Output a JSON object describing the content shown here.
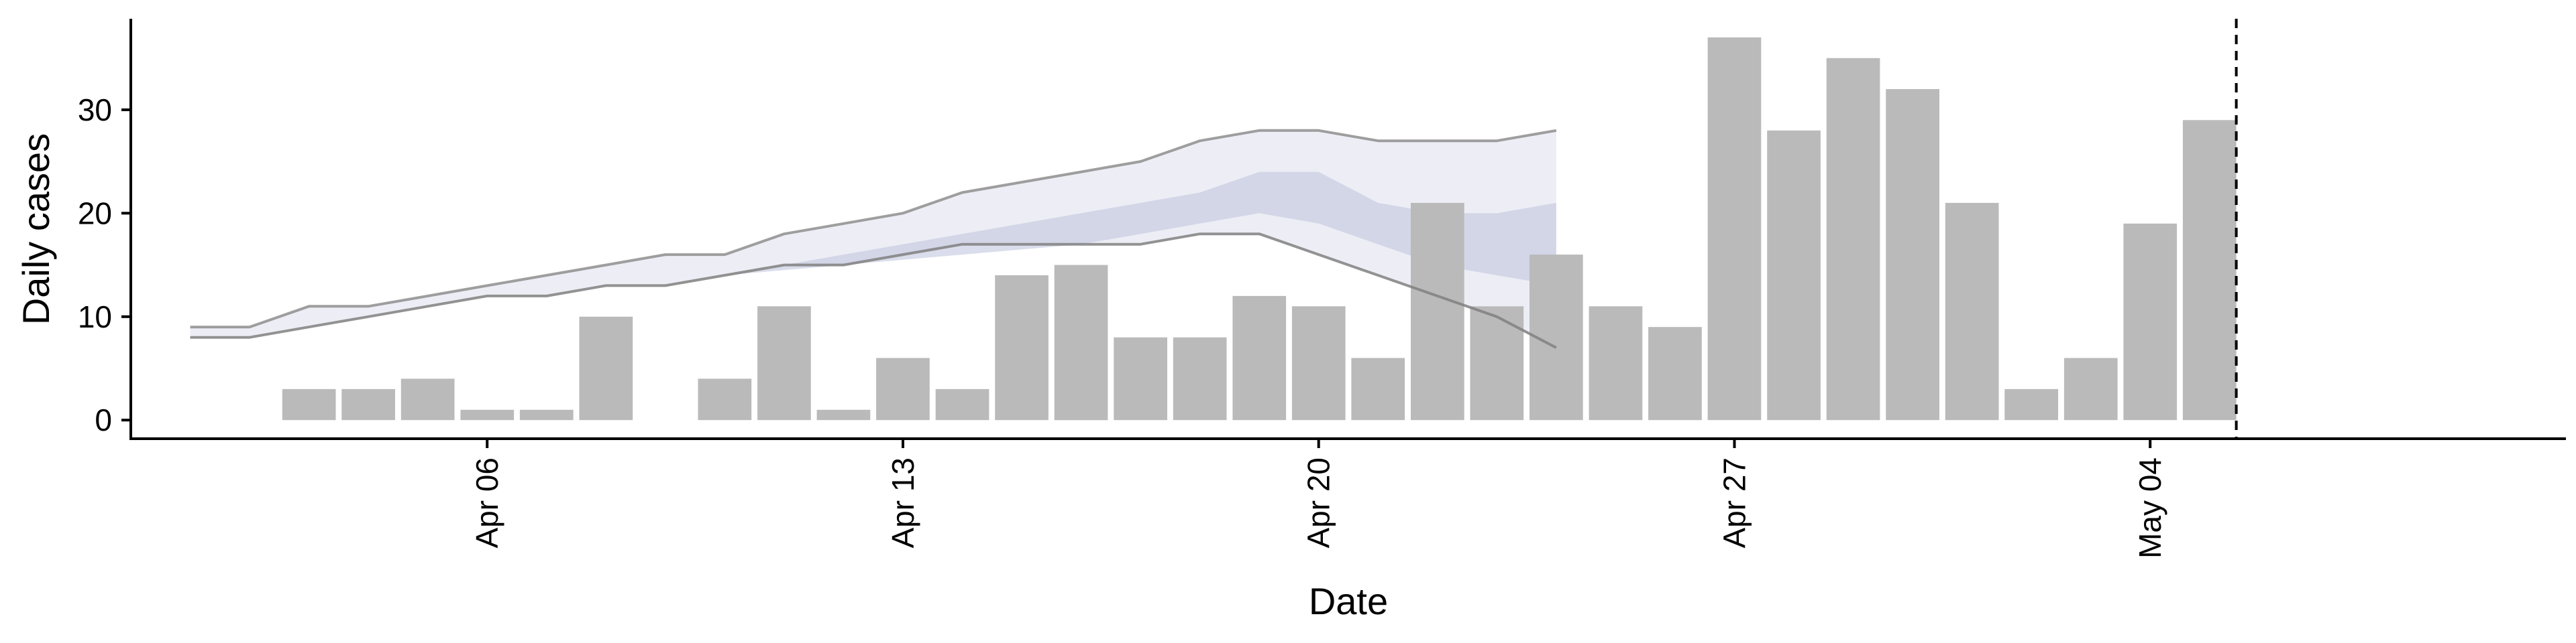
{
  "chart_data": {
    "type": "bar",
    "xlabel": "Date",
    "ylabel": "Daily cases",
    "x_tick_labels": [
      "Apr 06",
      "Apr 13",
      "Apr 20",
      "Apr 27",
      "May 04"
    ],
    "x_tick_dates": [
      "2020-04-06",
      "2020-04-13",
      "2020-04-20",
      "2020-04-27",
      "2020-05-04"
    ],
    "y_ticks": [
      0,
      10,
      20,
      30
    ],
    "xlim": [
      "2020-03-31",
      "2020-05-11"
    ],
    "ylim": [
      -1.8,
      38.8
    ],
    "bar_color": "#bababa",
    "bars": [
      {
        "date": "2020-04-03",
        "value": 3
      },
      {
        "date": "2020-04-04",
        "value": 3
      },
      {
        "date": "2020-04-05",
        "value": 4
      },
      {
        "date": "2020-04-06",
        "value": 1
      },
      {
        "date": "2020-04-07",
        "value": 1
      },
      {
        "date": "2020-04-08",
        "value": 10
      },
      {
        "date": "2020-04-09",
        "value": 0
      },
      {
        "date": "2020-04-10",
        "value": 4
      },
      {
        "date": "2020-04-11",
        "value": 11
      },
      {
        "date": "2020-04-12",
        "value": 1
      },
      {
        "date": "2020-04-13",
        "value": 6
      },
      {
        "date": "2020-04-14",
        "value": 3
      },
      {
        "date": "2020-04-15",
        "value": 14
      },
      {
        "date": "2020-04-16",
        "value": 15
      },
      {
        "date": "2020-04-17",
        "value": 8
      },
      {
        "date": "2020-04-18",
        "value": 8
      },
      {
        "date": "2020-04-19",
        "value": 12
      },
      {
        "date": "2020-04-20",
        "value": 11
      },
      {
        "date": "2020-04-21",
        "value": 6
      },
      {
        "date": "2020-04-22",
        "value": 21
      },
      {
        "date": "2020-04-23",
        "value": 11
      },
      {
        "date": "2020-04-24",
        "value": 16
      },
      {
        "date": "2020-04-25",
        "value": 11
      },
      {
        "date": "2020-04-26",
        "value": 9
      },
      {
        "date": "2020-04-27",
        "value": 37
      },
      {
        "date": "2020-04-28",
        "value": 28
      },
      {
        "date": "2020-04-29",
        "value": 35
      },
      {
        "date": "2020-04-30",
        "value": 32
      },
      {
        "date": "2020-05-01",
        "value": 21
      },
      {
        "date": "2020-05-02",
        "value": 3
      },
      {
        "date": "2020-05-03",
        "value": 6
      },
      {
        "date": "2020-05-04",
        "value": 19
      },
      {
        "date": "2020-05-05",
        "value": 29
      }
    ],
    "outer_band": {
      "color": "#dfe0ec",
      "upper": [
        {
          "date": "2020-04-01",
          "value": 9
        },
        {
          "date": "2020-04-02",
          "value": 9
        },
        {
          "date": "2020-04-03",
          "value": 11
        },
        {
          "date": "2020-04-04",
          "value": 11
        },
        {
          "date": "2020-04-05",
          "value": 12
        },
        {
          "date": "2020-04-06",
          "value": 13
        },
        {
          "date": "2020-04-07",
          "value": 14
        },
        {
          "date": "2020-04-08",
          "value": 15
        },
        {
          "date": "2020-04-09",
          "value": 16
        },
        {
          "date": "2020-04-10",
          "value": 16
        },
        {
          "date": "2020-04-11",
          "value": 18
        },
        {
          "date": "2020-04-12",
          "value": 19
        },
        {
          "date": "2020-04-13",
          "value": 20
        },
        {
          "date": "2020-04-14",
          "value": 22
        },
        {
          "date": "2020-04-15",
          "value": 23
        },
        {
          "date": "2020-04-16",
          "value": 24
        },
        {
          "date": "2020-04-17",
          "value": 25
        },
        {
          "date": "2020-04-18",
          "value": 27
        },
        {
          "date": "2020-04-19",
          "value": 28
        },
        {
          "date": "2020-04-20",
          "value": 28
        },
        {
          "date": "2020-04-21",
          "value": 27
        },
        {
          "date": "2020-04-22",
          "value": 27
        },
        {
          "date": "2020-04-23",
          "value": 27
        },
        {
          "date": "2020-04-24",
          "value": 28
        }
      ],
      "lower": [
        {
          "date": "2020-04-01",
          "value": 8
        },
        {
          "date": "2020-04-02",
          "value": 8
        },
        {
          "date": "2020-04-03",
          "value": 9
        },
        {
          "date": "2020-04-04",
          "value": 10
        },
        {
          "date": "2020-04-05",
          "value": 11
        },
        {
          "date": "2020-04-06",
          "value": 12
        },
        {
          "date": "2020-04-07",
          "value": 12
        },
        {
          "date": "2020-04-08",
          "value": 13
        },
        {
          "date": "2020-04-09",
          "value": 13
        },
        {
          "date": "2020-04-10",
          "value": 14
        },
        {
          "date": "2020-04-11",
          "value": 15
        },
        {
          "date": "2020-04-12",
          "value": 15
        },
        {
          "date": "2020-04-13",
          "value": 16
        },
        {
          "date": "2020-04-14",
          "value": 17
        },
        {
          "date": "2020-04-15",
          "value": 17
        },
        {
          "date": "2020-04-16",
          "value": 17
        },
        {
          "date": "2020-04-17",
          "value": 17
        },
        {
          "date": "2020-04-18",
          "value": 18
        },
        {
          "date": "2020-04-19",
          "value": 18
        },
        {
          "date": "2020-04-20",
          "value": 16
        },
        {
          "date": "2020-04-21",
          "value": 14
        },
        {
          "date": "2020-04-22",
          "value": 12
        },
        {
          "date": "2020-04-23",
          "value": 10
        },
        {
          "date": "2020-04-24",
          "value": 7
        }
      ]
    },
    "inner_band": {
      "color": "#c2c7dd",
      "upper": [
        {
          "date": "2020-04-08",
          "value": 13
        },
        {
          "date": "2020-04-10",
          "value": 14
        },
        {
          "date": "2020-04-12",
          "value": 16
        },
        {
          "date": "2020-04-14",
          "value": 18
        },
        {
          "date": "2020-04-16",
          "value": 20
        },
        {
          "date": "2020-04-18",
          "value": 22
        },
        {
          "date": "2020-04-19",
          "value": 24
        },
        {
          "date": "2020-04-20",
          "value": 24
        },
        {
          "date": "2020-04-21",
          "value": 21
        },
        {
          "date": "2020-04-22",
          "value": 20
        },
        {
          "date": "2020-04-23",
          "value": 20
        },
        {
          "date": "2020-04-24",
          "value": 21
        }
      ],
      "lower": [
        {
          "date": "2020-04-08",
          "value": 13
        },
        {
          "date": "2020-04-10",
          "value": 14
        },
        {
          "date": "2020-04-12",
          "value": 15
        },
        {
          "date": "2020-04-14",
          "value": 16
        },
        {
          "date": "2020-04-16",
          "value": 17
        },
        {
          "date": "2020-04-18",
          "value": 19
        },
        {
          "date": "2020-04-19",
          "value": 20
        },
        {
          "date": "2020-04-20",
          "value": 19
        },
        {
          "date": "2020-04-21",
          "value": 17
        },
        {
          "date": "2020-04-22",
          "value": 15
        },
        {
          "date": "2020-04-23",
          "value": 14
        },
        {
          "date": "2020-04-24",
          "value": 13
        }
      ]
    },
    "band_edge_color": "#808080",
    "vline": {
      "date": "2020-05-05",
      "style": "dashed",
      "color": "#000000"
    },
    "grid": false,
    "legend": "none"
  }
}
